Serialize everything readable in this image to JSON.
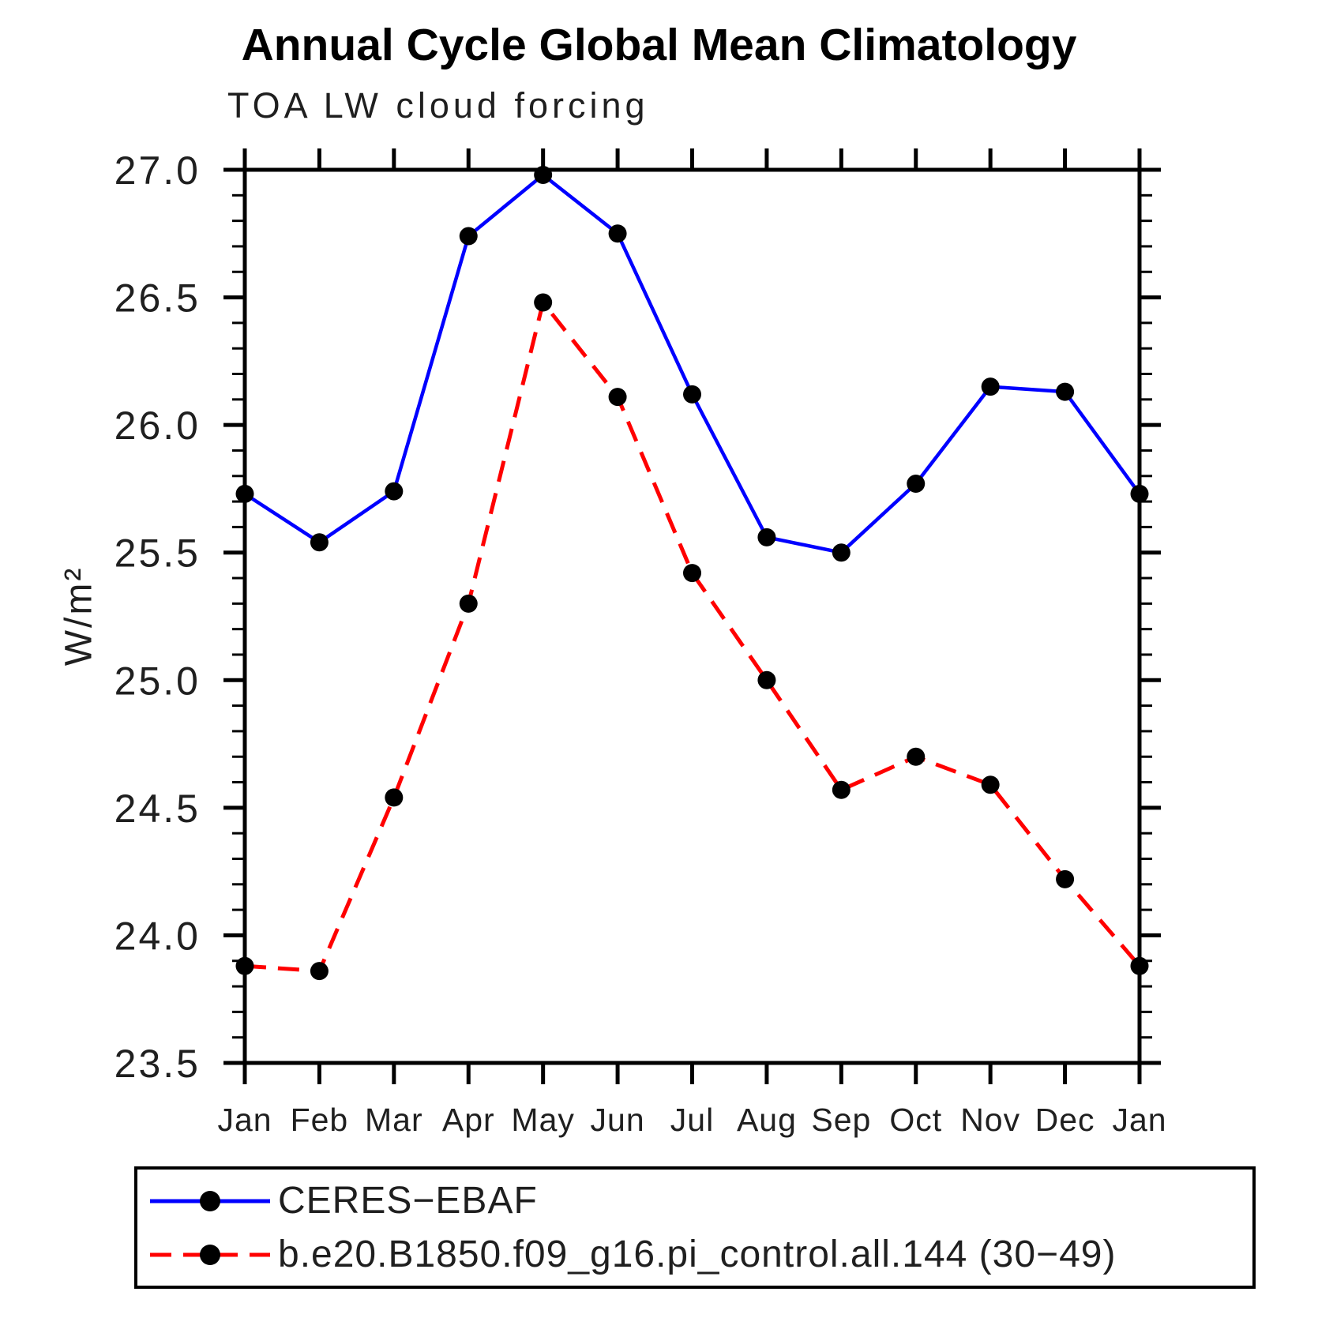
{
  "page": {
    "background": "#ffffff",
    "text_color": "#1f1f1f"
  },
  "chart_data": {
    "type": "line",
    "title": "Annual Cycle Global Mean Climatology",
    "subtitle": "TOA LW cloud forcing",
    "ylabel": "W/m²",
    "xlabel": "",
    "categories": [
      "Jan",
      "Feb",
      "Mar",
      "Apr",
      "May",
      "Jun",
      "Jul",
      "Aug",
      "Sep",
      "Oct",
      "Nov",
      "Dec",
      "Jan"
    ],
    "ylim": [
      23.5,
      27.0
    ],
    "ytick_major": 0.5,
    "ytick_minor": 0.1,
    "ytick_labels": [
      "23.5",
      "24.0",
      "24.5",
      "25.0",
      "25.5",
      "26.0",
      "26.5",
      "27.0"
    ],
    "grid": false,
    "legend_position": "bottom",
    "marker": "filled-circle",
    "marker_color": "#000000",
    "axis_color": "#000000",
    "series": [
      {
        "name": "CERES−EBAF",
        "color": "#0000ff",
        "style": "solid",
        "values": [
          25.73,
          25.54,
          25.74,
          26.74,
          26.98,
          26.75,
          26.12,
          25.56,
          25.5,
          25.77,
          26.15,
          26.13,
          25.73
        ]
      },
      {
        "name": "b.e20.B1850.f09_g16.pi_control.all.144 (30−49)",
        "color": "#ff0000",
        "style": "dashed",
        "values": [
          23.88,
          23.86,
          24.54,
          25.3,
          26.48,
          26.11,
          25.42,
          25.0,
          24.57,
          24.7,
          24.59,
          24.22,
          23.88
        ]
      }
    ]
  }
}
